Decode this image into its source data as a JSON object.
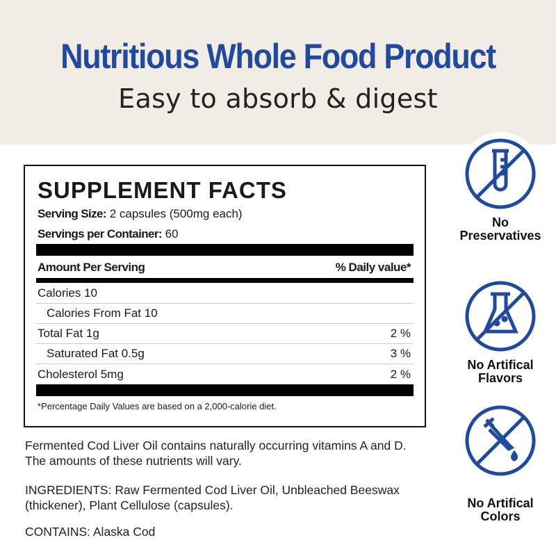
{
  "header": {
    "title": "Nutritious Whole Food Product",
    "subtitle": "Easy to absorb & digest"
  },
  "facts": {
    "heading": "SUPPLEMENT FACTS",
    "serving_size_label": "Serving Size:",
    "serving_size_value": "2 capsules (500mg each)",
    "servings_label": "Servings per Container:",
    "servings_value": "60",
    "amount_header": "Amount Per Serving",
    "dv_header": "% Daily value*",
    "rows": [
      {
        "name": "Calories 10",
        "dv": ""
      },
      {
        "name": "Calories From Fat 10",
        "dv": ""
      },
      {
        "name": "Total Fat 1g",
        "dv": "2 %"
      },
      {
        "name": "Saturated Fat 0.5g",
        "dv": "3 %"
      },
      {
        "name": "Cholesterol 5mg",
        "dv": "2 %"
      }
    ],
    "footnote": "*Percentage Daily Values are based on a 2,000-calorie diet."
  },
  "notes": {
    "vitamins": "Fermented Cod Liver Oil contains naturally occurring vitamins A and D. The amounts of these nutrients will vary.",
    "ingredients": "INGREDIENTS: Raw Fermented Cod Liver Oil, Unbleached Beeswax (thickener), Plant Cellulose (capsules).",
    "contains": "CONTAINS: Alaska Cod"
  },
  "badges": [
    {
      "icon": "no-test-tube-icon",
      "line1": "No",
      "line2": "Preservatives"
    },
    {
      "icon": "no-flask-icon",
      "line1": "No Artifical",
      "line2": "Flavors"
    },
    {
      "icon": "no-dropper-icon",
      "line1": "No Artifical",
      "line2": "Colors"
    }
  ],
  "colors": {
    "brand_blue": "#1f4aa0",
    "header_bg": "#f1ede4"
  }
}
